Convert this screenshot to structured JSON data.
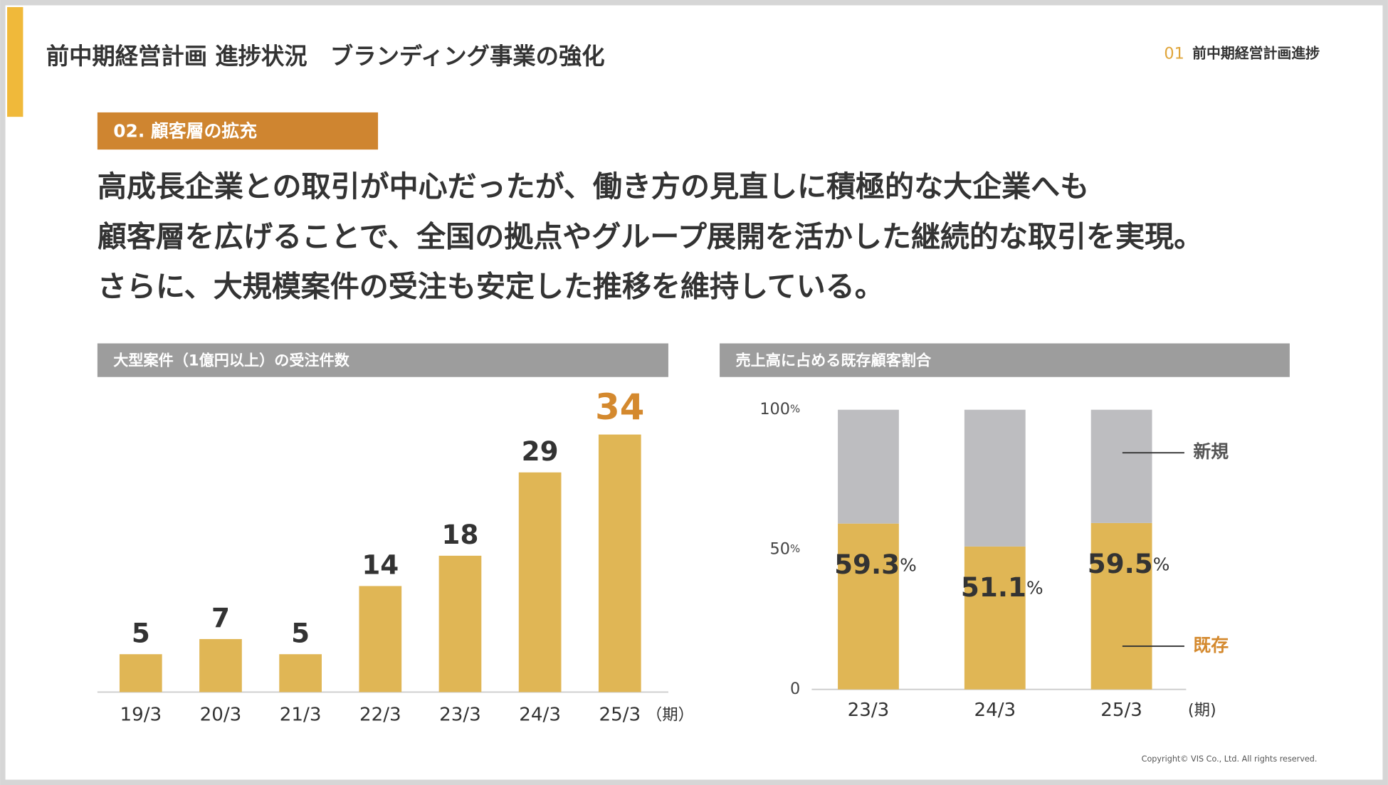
{
  "header": {
    "title": "前中期経営計画 進捗状況　ブランディング事業の強化",
    "section_number": "01",
    "section_name": "前中期経営計画進捗"
  },
  "badge": "02. 顧客層の拡充",
  "lead": [
    "高成長企業との取引が中心だったが、働き方の見直しに積極的な大企業へも",
    "顧客層を広げることで、全国の拠点やグループ展開を活かした継続的な取引を実現。",
    "さらに、大規模案件の受注も安定した推移を維持している。"
  ],
  "chart_data": [
    {
      "type": "bar",
      "title": "大型案件（1億円以上）の受注件数",
      "x_unit": "（期）",
      "categories": [
        "19/3",
        "20/3",
        "21/3",
        "22/3",
        "23/3",
        "24/3",
        "25/3"
      ],
      "values": [
        5,
        7,
        5,
        14,
        18,
        29,
        34
      ],
      "color": "#e0b655",
      "highlight": "25/3",
      "highlight_color": "#d4892e"
    },
    {
      "type": "stacked_bar",
      "title": "売上高に占める既存顧客割合",
      "x_unit": "(期)",
      "categories": [
        "23/3",
        "24/3",
        "25/3"
      ],
      "series": [
        {
          "name": "既存",
          "color": "#e0b655",
          "label_color": "#d4892e",
          "values": [
            59.3,
            51.1,
            59.5
          ],
          "value_labels": [
            "59.3%",
            "51.1%",
            "59.5%"
          ]
        },
        {
          "name": "新規",
          "color": "#bdbdc0",
          "label_color": "#555555",
          "values": [
            40.7,
            48.9,
            40.5
          ]
        }
      ],
      "ylim": [
        0,
        100
      ],
      "yticks": [
        0,
        {
          "value": 50,
          "label": "50%"
        },
        {
          "value": 100,
          "label": "100%"
        }
      ]
    }
  ],
  "copyright": "Copyright© VIS Co., Ltd. All rights reserved."
}
